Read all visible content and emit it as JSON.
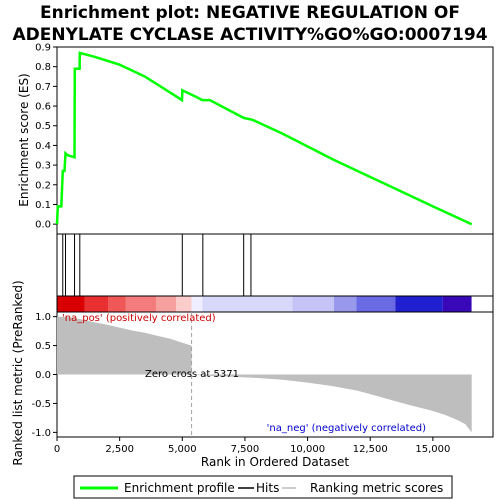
{
  "title_line1": "Enrichment plot: NEGATIVE REGULATION OF",
  "title_line2": "ADENYLATE CYCLASE ACTIVITY%GO%GO:0007194",
  "colors": {
    "es_line": "#00ff00",
    "hits": "#000000",
    "metric_fill": "#bebebe",
    "pos_label": "#cc0000",
    "neg_label": "#0000cc",
    "zero_line": "#a0a0a0"
  },
  "chart_data": [
    {
      "type": "line",
      "name": "enrichment-profile",
      "ylabel": "Enrichment score (ES)",
      "ylim": [
        -0.05,
        0.9
      ],
      "yticks": [
        "0.0",
        "0.1",
        "0.2",
        "0.3",
        "0.4",
        "0.5",
        "0.6",
        "0.7",
        "0.8",
        "0.9"
      ],
      "points": [
        [
          0,
          0.0
        ],
        [
          30,
          0.09
        ],
        [
          170,
          0.09
        ],
        [
          230,
          0.27
        ],
        [
          300,
          0.27
        ],
        [
          340,
          0.36
        ],
        [
          430,
          0.35
        ],
        [
          700,
          0.34
        ],
        [
          710,
          0.79
        ],
        [
          900,
          0.79
        ],
        [
          910,
          0.87
        ],
        [
          1500,
          0.85
        ],
        [
          2500,
          0.81
        ],
        [
          3500,
          0.75
        ],
        [
          4500,
          0.67
        ],
        [
          4990,
          0.63
        ],
        [
          5000,
          0.68
        ],
        [
          5500,
          0.65
        ],
        [
          5800,
          0.63
        ],
        [
          6100,
          0.63
        ],
        [
          7000,
          0.57
        ],
        [
          7450,
          0.54
        ],
        [
          7800,
          0.53
        ],
        [
          9000,
          0.46
        ],
        [
          11000,
          0.33
        ],
        [
          13000,
          0.21
        ],
        [
          15000,
          0.09
        ],
        [
          16550,
          0.0
        ]
      ]
    },
    {
      "type": "hits",
      "name": "hits",
      "x": [
        230,
        340,
        700,
        910,
        5000,
        5820,
        7450,
        7740
      ]
    },
    {
      "type": "area",
      "name": "ranking-metric-scores",
      "ylabel": "Ranked list metric (PreRanked)",
      "xlabel": "Rank in Ordered Dataset",
      "xlim": [
        0,
        17400
      ],
      "ylim": [
        -1.08,
        1.08
      ],
      "xticks": [
        "0",
        "2,500",
        "5,000",
        "7,500",
        "10,000",
        "12,500",
        "15,000"
      ],
      "yticks": [
        "1.0",
        "0.5",
        "0.0",
        "-0.5",
        "-1.0"
      ],
      "points": [
        [
          0,
          1.0
        ],
        [
          500,
          0.99
        ],
        [
          1000,
          0.95
        ],
        [
          1500,
          0.9
        ],
        [
          2000,
          0.86
        ],
        [
          2500,
          0.81
        ],
        [
          3000,
          0.76
        ],
        [
          3500,
          0.72
        ],
        [
          4000,
          0.67
        ],
        [
          4500,
          0.62
        ],
        [
          5000,
          0.55
        ],
        [
          5371,
          0.5
        ],
        [
          5371,
          0.0
        ],
        [
          6000,
          -0.02
        ],
        [
          7000,
          -0.04
        ],
        [
          8000,
          -0.06
        ],
        [
          9000,
          -0.09
        ],
        [
          10000,
          -0.14
        ],
        [
          11000,
          -0.2
        ],
        [
          12000,
          -0.28
        ],
        [
          13000,
          -0.4
        ],
        [
          14000,
          -0.52
        ],
        [
          15000,
          -0.63
        ],
        [
          15500,
          -0.7
        ],
        [
          16000,
          -0.79
        ],
        [
          16300,
          -0.86
        ],
        [
          16550,
          -1.0
        ]
      ],
      "zero_cross_label": "Zero cross at 5371",
      "zero_cross_x": 5371,
      "pos_label": "'na_pos' (positively correlated)",
      "neg_label": "'na_neg' (negatively correlated)"
    }
  ],
  "heatbar": [
    {
      "x0": 0,
      "x1": 1100,
      "color": "#d80000"
    },
    {
      "x0": 1100,
      "x1": 2050,
      "color": "#e83030"
    },
    {
      "x0": 2050,
      "x1": 2750,
      "color": "#f05858"
    },
    {
      "x0": 2750,
      "x1": 3950,
      "color": "#f47c7c"
    },
    {
      "x0": 3950,
      "x1": 4750,
      "color": "#f7a0a0"
    },
    {
      "x0": 4750,
      "x1": 5371,
      "color": "#fbcccc"
    },
    {
      "x0": 5371,
      "x1": 5800,
      "color": "#eeeeff"
    },
    {
      "x0": 5800,
      "x1": 9400,
      "color": "#d8d8fa"
    },
    {
      "x0": 9400,
      "x1": 11050,
      "color": "#c4c4f6"
    },
    {
      "x0": 11050,
      "x1": 11950,
      "color": "#9898ec"
    },
    {
      "x0": 11950,
      "x1": 13500,
      "color": "#6a6ae4"
    },
    {
      "x0": 13500,
      "x1": 15400,
      "color": "#2020d0"
    },
    {
      "x0": 15400,
      "x1": 16550,
      "color": "#3808b8"
    }
  ],
  "legend": {
    "items": [
      {
        "label": "Enrichment profile",
        "color": "#00ff00"
      },
      {
        "label": "Hits",
        "color": "#000000"
      },
      {
        "label": "Ranking metric scores",
        "color": "#bebebe"
      }
    ]
  }
}
